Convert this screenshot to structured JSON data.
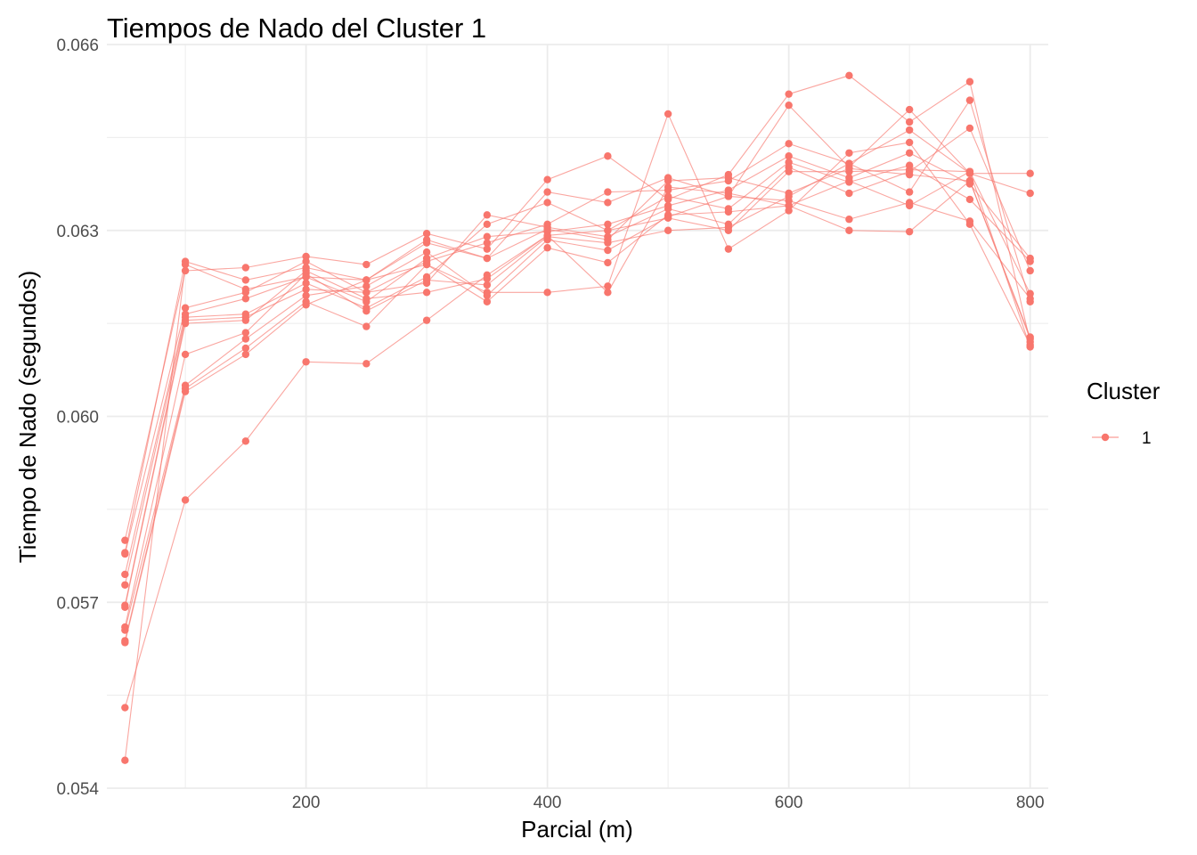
{
  "chart_data": {
    "type": "line",
    "title": "Tiempos de Nado del Cluster 1",
    "xlabel": "Parcial (m)",
    "ylabel": "Tiempo de Nado (segundos)",
    "xlim": [
      35,
      815
    ],
    "ylim": [
      0.054,
      0.066
    ],
    "x_ticks": [
      200,
      400,
      600,
      800
    ],
    "x_tick_labels": [
      "200",
      "400",
      "600",
      "800"
    ],
    "y_ticks": [
      0.054,
      0.057,
      0.06,
      0.063,
      0.066
    ],
    "y_tick_labels": [
      "0.054",
      "0.057",
      "0.060",
      "0.063",
      "0.066"
    ],
    "grid": true,
    "legend": {
      "title": "Cluster",
      "position": "right",
      "entries": [
        {
          "label": "1",
          "color": "#F8766D"
        }
      ]
    },
    "colors": {
      "series": "#F8766D",
      "grid": "#ebebeb"
    },
    "x": [
      50,
      100,
      150,
      200,
      250,
      300,
      350,
      400,
      450,
      500,
      550,
      600,
      650,
      700,
      750,
      800
    ],
    "series": [
      {
        "values": [
          0.058,
          0.06235,
          0.0624,
          0.06258,
          0.06245,
          0.06295,
          0.0627,
          0.06382,
          0.0642,
          0.0635,
          0.0639,
          0.0652,
          0.0655,
          0.06475,
          0.0654,
          0.0612
        ]
      },
      {
        "values": [
          0.0578,
          0.0625,
          0.0622,
          0.0624,
          0.0622,
          0.0628,
          0.06255,
          0.06362,
          0.06345,
          0.06385,
          0.06355,
          0.06502,
          0.06402,
          0.06495,
          0.06392,
          0.0636
        ]
      },
      {
        "values": [
          0.05778,
          0.06175,
          0.062,
          0.0625,
          0.062,
          0.0625,
          0.0628,
          0.0631,
          0.06362,
          0.06365,
          0.0638,
          0.0644,
          0.06408,
          0.06462,
          0.06392,
          0.06392
        ]
      },
      {
        "values": [
          0.05745,
          0.06165,
          0.0619,
          0.06225,
          0.06185,
          0.06255,
          0.0629,
          0.06298,
          0.0631,
          0.0634,
          0.06365,
          0.0642,
          0.06385,
          0.06425,
          0.06375,
          0.06255
        ]
      },
      {
        "values": [
          0.05728,
          0.0616,
          0.06165,
          0.06215,
          0.06175,
          0.06225,
          0.0631,
          0.06345,
          0.063,
          0.06355,
          0.06335,
          0.0641,
          0.06378,
          0.06405,
          0.0635,
          0.0625
        ]
      },
      {
        "values": [
          0.05695,
          0.06155,
          0.0616,
          0.06205,
          0.062,
          0.06215,
          0.06325,
          0.06305,
          0.0629,
          0.06335,
          0.0631,
          0.06402,
          0.0636,
          0.06395,
          0.06465,
          0.06235
        ]
      },
      {
        "values": [
          0.05692,
          0.0615,
          0.06155,
          0.06235,
          0.0619,
          0.062,
          0.06222,
          0.06292,
          0.063,
          0.0632,
          0.063,
          0.06395,
          0.06395,
          0.06398,
          0.06395,
          0.06198
        ]
      },
      {
        "values": [
          0.0566,
          0.061,
          0.06135,
          0.0623,
          0.0617,
          0.0622,
          0.06212,
          0.0629,
          0.0628,
          0.063,
          0.06305,
          0.06355,
          0.06408,
          0.06362,
          0.0651,
          0.06185
        ]
      },
      {
        "values": [
          0.05655,
          0.0605,
          0.06125,
          0.06195,
          0.0621,
          0.06265,
          0.06195,
          0.06285,
          0.06268,
          0.06322,
          0.06355,
          0.06348,
          0.06318,
          0.06345,
          0.06315,
          0.0619
        ]
      },
      {
        "values": [
          0.05638,
          0.06045,
          0.0611,
          0.06185,
          0.06145,
          0.06245,
          0.06185,
          0.06272,
          0.06248,
          0.06325,
          0.0633,
          0.0634,
          0.063,
          0.06298,
          0.0638,
          0.06128
        ]
      },
      {
        "values": [
          0.05635,
          0.0604,
          0.061,
          0.0618,
          0.0622,
          0.06245,
          0.062,
          0.062,
          0.0621,
          0.06488,
          0.0627,
          0.06332,
          0.06425,
          0.06442,
          0.0631,
          0.06115
        ]
      },
      {
        "values": [
          0.0553,
          0.05865,
          0.0596,
          0.06088,
          0.06085,
          0.06155,
          0.06228,
          0.06292,
          0.062,
          0.0637,
          0.0636,
          0.0634,
          0.0638,
          0.0634,
          0.06395,
          0.06112
        ]
      },
      {
        "values": [
          0.05445,
          0.06245,
          0.06205,
          0.06225,
          0.0622,
          0.06285,
          0.06255,
          0.06302,
          0.06285,
          0.0638,
          0.06385,
          0.0636,
          0.064,
          0.0639,
          0.0638,
          0.06125
        ]
      }
    ]
  }
}
